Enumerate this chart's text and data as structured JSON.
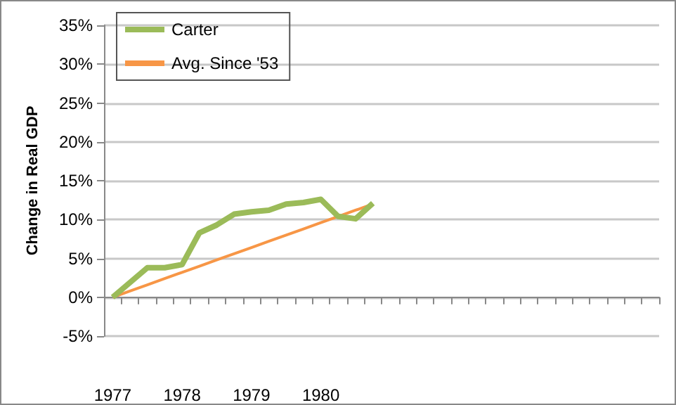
{
  "chart_data": {
    "type": "line",
    "ylabel": "Change in Real GDP",
    "categories": [
      "1977",
      null,
      null,
      null,
      "1978",
      null,
      null,
      null,
      "1979",
      null,
      null,
      null,
      "1980",
      null,
      null,
      null,
      null,
      null,
      null,
      null,
      null,
      null,
      null,
      null,
      null,
      null,
      null,
      null,
      null,
      null,
      null,
      null
    ],
    "series": [
      {
        "name": "Carter",
        "color": "#9bbb59",
        "values": [
          0,
          1.9,
          3.8,
          3.8,
          4.2,
          8.3,
          9.3,
          10.7,
          11.0,
          11.2,
          12.0,
          12.2,
          12.6,
          10.4,
          10.1,
          12.1,
          null,
          null,
          null,
          null,
          null,
          null,
          null,
          null,
          null,
          null,
          null,
          null,
          null,
          null,
          null,
          null
        ]
      },
      {
        "name": "Avg. Since '53",
        "color": "#f79646",
        "values": [
          0,
          0.8,
          1.6,
          2.4,
          3.2,
          4.0,
          4.8,
          5.6,
          6.4,
          7.2,
          8.0,
          8.8,
          9.6,
          10.4,
          11.2,
          12.0,
          null,
          null,
          null,
          null,
          null,
          null,
          null,
          null,
          null,
          null,
          null,
          null,
          null,
          null,
          null,
          null
        ]
      }
    ],
    "ylim": [
      -5,
      35
    ],
    "yticks": [
      {
        "value": -5,
        "label": "-5%"
      },
      {
        "value": 0,
        "label": "0%"
      },
      {
        "value": 5,
        "label": "5%"
      },
      {
        "value": 10,
        "label": "10%"
      },
      {
        "value": 15,
        "label": "15%"
      },
      {
        "value": 20,
        "label": "20%"
      },
      {
        "value": 25,
        "label": "25%"
      },
      {
        "value": 30,
        "label": "30%"
      },
      {
        "value": 35,
        "label": "35%"
      }
    ],
    "grid": "y",
    "legend": "top left",
    "marker": "none",
    "line_style": "solid"
  }
}
